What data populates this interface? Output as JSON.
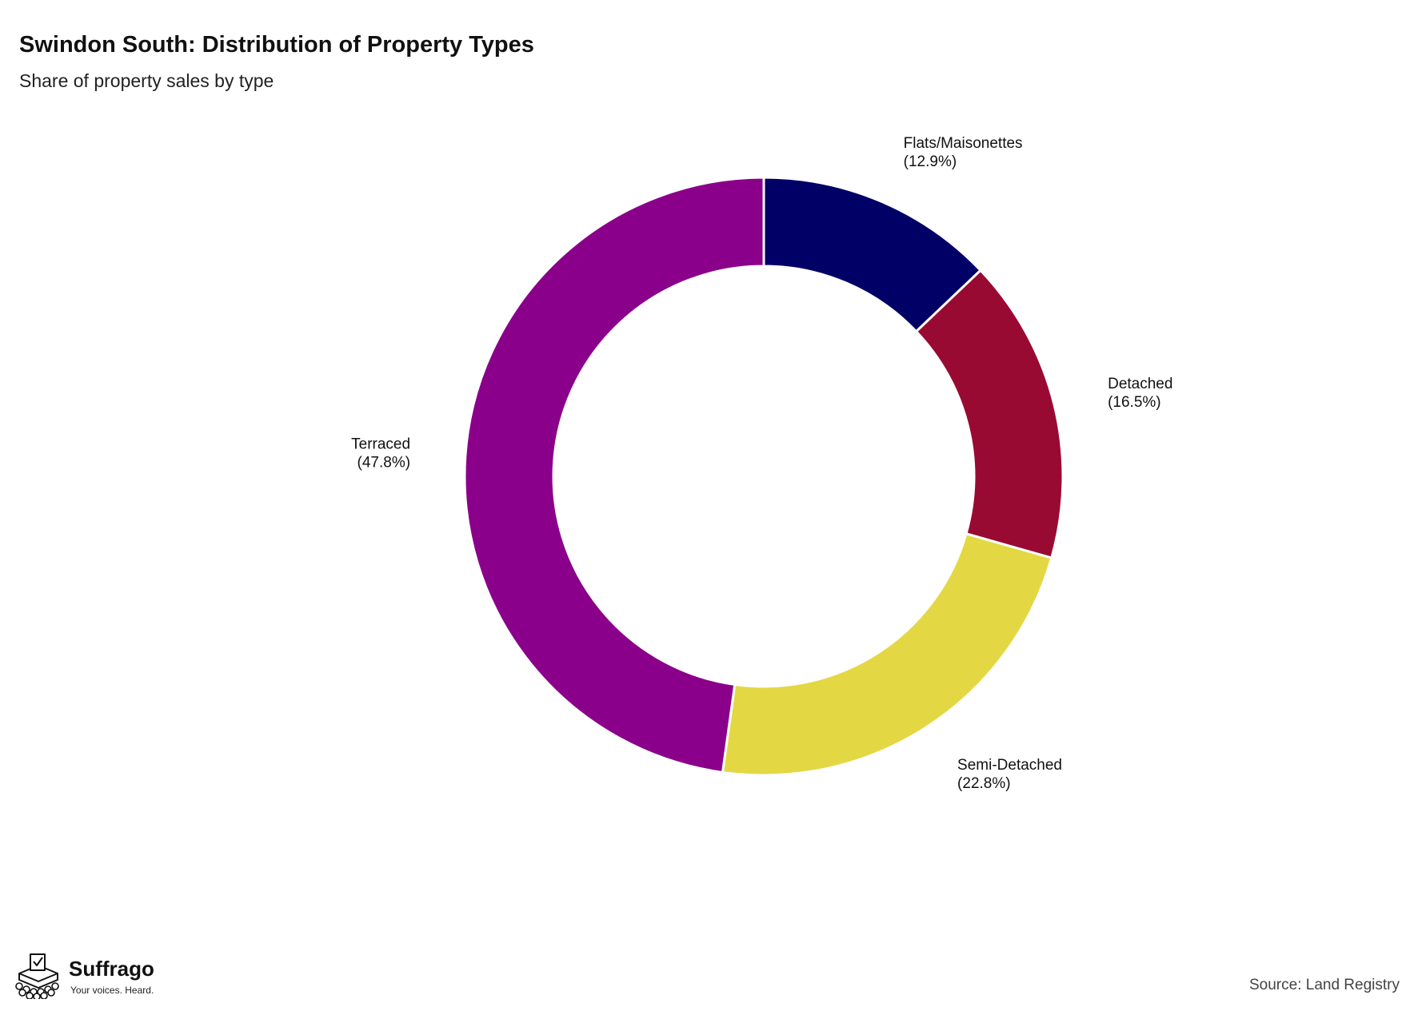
{
  "title": "Swindon South: Distribution of Property Types",
  "subtitle": "Share of property sales by type",
  "source": "Source: Land Registry",
  "brand": {
    "name": "Suffrago",
    "tagline": "Your voices. Heard."
  },
  "chart_data": {
    "type": "pie",
    "variant": "donut",
    "title": "Swindon South: Distribution of Property Types",
    "subtitle": "Share of property sales by type",
    "unit": "%",
    "start": "12 o'clock, clockwise",
    "slices": [
      {
        "name": "Flats/Maisonettes",
        "value": 12.9,
        "label": "(12.9%)",
        "color": "#000066"
      },
      {
        "name": "Detached",
        "value": 16.5,
        "label": "(16.5%)",
        "color": "#990a33"
      },
      {
        "name": "Semi-Detached",
        "value": 22.8,
        "label": "(22.8%)",
        "color": "#e3d843"
      },
      {
        "name": "Terraced",
        "value": 47.8,
        "label": "(47.8%)",
        "color": "#8a008a"
      }
    ]
  }
}
